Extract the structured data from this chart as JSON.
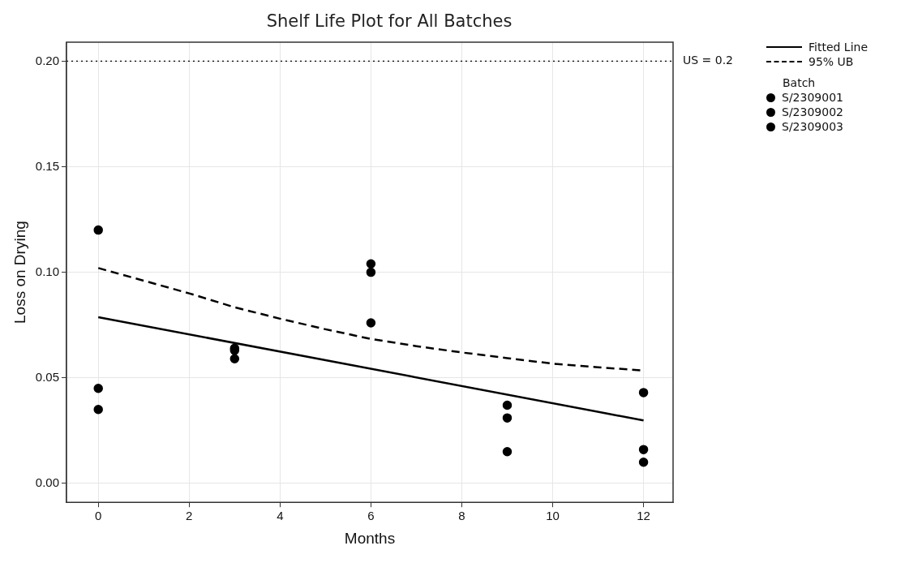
{
  "chart_data": {
    "type": "scatter",
    "title": "Shelf Life Plot for All Batches",
    "xlabel": "Months",
    "ylabel": "Loss on Drying",
    "legend_title": "Batch",
    "xlim": [
      -0.7,
      12.65
    ],
    "xticks": [
      0,
      2,
      4,
      6,
      8,
      10,
      12
    ],
    "ylim": [
      -0.009,
      0.209
    ],
    "yticks": [
      {
        "value": 0,
        "label": "0.00"
      },
      {
        "value": 0.05,
        "label": "0.05"
      },
      {
        "value": 0.1,
        "label": "0.10"
      },
      {
        "value": 0.15,
        "label": "0.15"
      },
      {
        "value": 0.2,
        "label": "0.20"
      }
    ],
    "grid": true,
    "legend": "right",
    "marker": "circle",
    "ref_lines": [
      {
        "axis": "y",
        "value": 0.2,
        "label": "US = 0.2",
        "line_style": "dotted",
        "color": "#000000"
      }
    ],
    "series": [
      {
        "name": "Fitted Line",
        "type": "line",
        "color": "#000000",
        "x": [
          0,
          12
        ],
        "values": [
          0.0787,
          0.0298
        ],
        "line_style": "solid",
        "marker": "none"
      },
      {
        "name": "95% UB",
        "type": "line",
        "color": "#000000",
        "x": [
          0,
          1,
          2,
          3,
          4,
          5,
          6,
          7,
          8,
          9,
          10,
          11,
          12
        ],
        "values": [
          0.102,
          0.096,
          0.09,
          0.0834,
          0.078,
          0.073,
          0.0684,
          0.065,
          0.062,
          0.0593,
          0.0567,
          0.055,
          0.0534
        ],
        "line_style": "dashed",
        "marker": "none"
      },
      {
        "name": "S/2309001",
        "color": "#000000",
        "x": [
          0,
          3,
          6,
          9,
          12
        ],
        "values": [
          0.12,
          0.064,
          0.104,
          0.037,
          0.043
        ]
      },
      {
        "name": "S/2309002",
        "color": "#000000",
        "x": [
          0,
          3,
          6,
          9,
          12
        ],
        "values": [
          0.045,
          0.063,
          0.1,
          0.031,
          0.016
        ]
      },
      {
        "name": "S/2309003",
        "color": "#000000",
        "x": [
          0,
          3,
          6,
          9,
          12
        ],
        "values": [
          0.035,
          0.059,
          0.076,
          0.015,
          0.01
        ]
      }
    ]
  }
}
